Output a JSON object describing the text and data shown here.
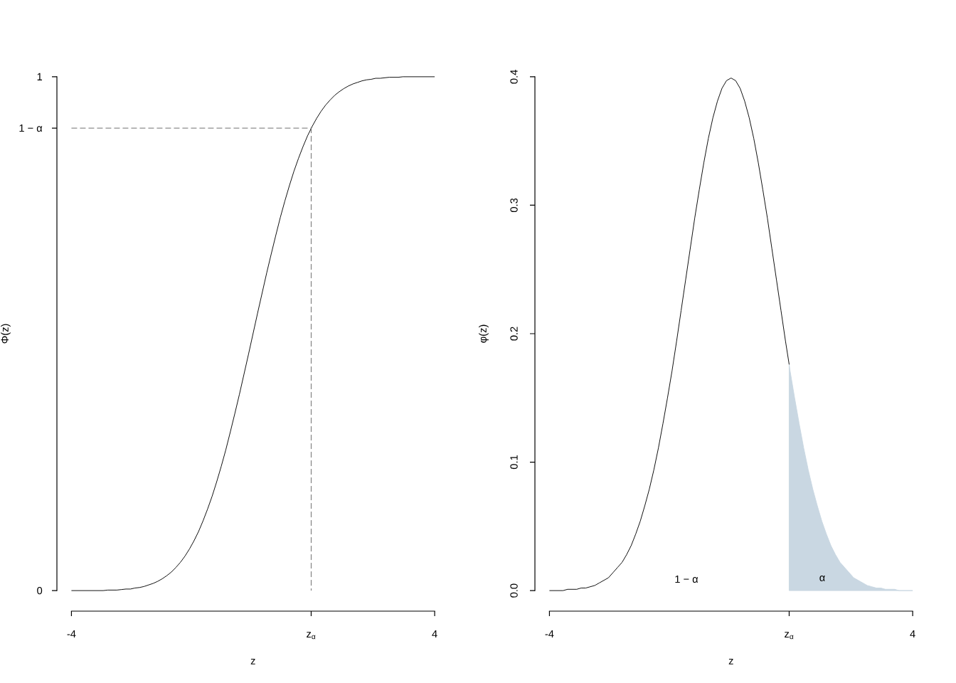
{
  "chart_data": [
    {
      "type": "line",
      "xlabel": "z",
      "ylabel": "Φ(z)",
      "xlim": [
        -4,
        4
      ],
      "ylim": [
        0,
        1
      ],
      "xticks": [
        -4,
        {
          "value": 1.28,
          "label": "z$_{α}$"
        },
        4
      ],
      "yticks": [
        0,
        {
          "value": 0.9,
          "label": "1 − α"
        },
        1
      ],
      "series": [
        {
          "color": "#000000",
          "x": [
            -4,
            -3.9,
            -3.8,
            -3.7,
            -3.6,
            -3.5,
            -3.4,
            -3.3,
            -3.2,
            -3.1,
            -3,
            -2.9,
            -2.8,
            -2.7,
            -2.6,
            -2.5,
            -2.4,
            -2.3,
            -2.2,
            -2.1,
            -2,
            -1.9,
            -1.8,
            -1.7,
            -1.6,
            -1.5,
            -1.4,
            -1.3,
            -1.2,
            -1.1,
            -1,
            -0.9,
            -0.8,
            -0.7,
            -0.6,
            -0.5,
            -0.4,
            -0.3,
            -0.2,
            -0.1,
            0,
            0.1,
            0.2,
            0.3,
            0.4,
            0.5,
            0.6,
            0.7,
            0.8,
            0.9,
            1,
            1.1,
            1.2,
            1.3,
            1.4,
            1.5,
            1.6,
            1.7,
            1.8,
            1.9,
            2,
            2.1,
            2.2,
            2.3,
            2.4,
            2.5,
            2.6,
            2.7,
            2.8,
            2.9,
            3,
            3.1,
            3.2,
            3.3,
            3.4,
            3.5,
            3.6,
            3.7,
            3.8,
            3.9,
            4
          ],
          "values": [
            0,
            0,
            0,
            0,
            0,
            0,
            0,
            0,
            0.001,
            0.001,
            0.001,
            0.002,
            0.003,
            0.003,
            0.005,
            0.006,
            0.008,
            0.011,
            0.014,
            0.018,
            0.023,
            0.029,
            0.036,
            0.045,
            0.055,
            0.067,
            0.081,
            0.097,
            0.115,
            0.136,
            0.159,
            0.184,
            0.212,
            0.242,
            0.274,
            0.309,
            0.345,
            0.382,
            0.421,
            0.46,
            0.5,
            0.54,
            0.579,
            0.618,
            0.655,
            0.691,
            0.726,
            0.758,
            0.788,
            0.816,
            0.841,
            0.864,
            0.885,
            0.903,
            0.919,
            0.933,
            0.945,
            0.955,
            0.964,
            0.971,
            0.977,
            0.982,
            0.986,
            0.989,
            0.992,
            0.994,
            0.995,
            0.997,
            0.997,
            0.998,
            0.999,
            0.999,
            0.999,
            1,
            1,
            1,
            1,
            1,
            1,
            1,
            1
          ]
        },
        {
          "color": "#666666",
          "line_style": "dashed",
          "x": [
            -4,
            1.28,
            1.28
          ],
          "values": [
            0.9,
            0.9,
            0
          ]
        }
      ]
    },
    {
      "type": "line",
      "xlabel": "z",
      "ylabel": "φ(z)",
      "xlim": [
        -4,
        4
      ],
      "ylim": [
        0,
        0.4
      ],
      "xticks": [
        -4,
        {
          "value": 1.28,
          "label": "z$_{α}$"
        },
        4
      ],
      "yticks": [
        {
          "value": 0,
          "label": "0.0"
        },
        0.1,
        0.2,
        0.3,
        0.4
      ],
      "series": [
        {
          "color": "#000000",
          "x": [
            -4,
            -3.9,
            -3.8,
            -3.7,
            -3.6,
            -3.5,
            -3.4,
            -3.3,
            -3.2,
            -3.1,
            -3,
            -2.9,
            -2.8,
            -2.7,
            -2.6,
            -2.5,
            -2.4,
            -2.3,
            -2.2,
            -2.1,
            -2,
            -1.9,
            -1.8,
            -1.7,
            -1.6,
            -1.5,
            -1.4,
            -1.3,
            -1.2,
            -1.1,
            -1,
            -0.9,
            -0.8,
            -0.7,
            -0.6,
            -0.5,
            -0.4,
            -0.3,
            -0.2,
            -0.1,
            0,
            0.1,
            0.2,
            0.3,
            0.4,
            0.5,
            0.6,
            0.7,
            0.8,
            0.9,
            1,
            1.1,
            1.2,
            1.28
          ],
          "values": [
            0,
            0,
            0,
            0,
            0.001,
            0.001,
            0.001,
            0.002,
            0.002,
            0.003,
            0.004,
            0.006,
            0.008,
            0.01,
            0.014,
            0.018,
            0.022,
            0.028,
            0.035,
            0.044,
            0.054,
            0.066,
            0.079,
            0.094,
            0.111,
            0.13,
            0.15,
            0.171,
            0.194,
            0.218,
            0.242,
            0.266,
            0.29,
            0.312,
            0.333,
            0.352,
            0.368,
            0.381,
            0.391,
            0.397,
            0.399,
            0.397,
            0.391,
            0.381,
            0.368,
            0.352,
            0.333,
            0.312,
            0.29,
            0.266,
            0.242,
            0.218,
            0.194,
            0.176
          ]
        },
        {
          "type": "area",
          "color": "#c9d7e2",
          "x": [
            1.28,
            1.3,
            1.4,
            1.5,
            1.6,
            1.7,
            1.8,
            1.9,
            2,
            2.1,
            2.2,
            2.3,
            2.4,
            2.5,
            2.6,
            2.7,
            2.8,
            2.9,
            3,
            3.1,
            3.2,
            3.3,
            3.4,
            3.5,
            3.6,
            3.7,
            3.8,
            3.9,
            4
          ],
          "values": [
            0.176,
            0.171,
            0.15,
            0.13,
            0.111,
            0.094,
            0.079,
            0.066,
            0.054,
            0.044,
            0.035,
            0.028,
            0.022,
            0.018,
            0.014,
            0.01,
            0.008,
            0.006,
            0.004,
            0.003,
            0.002,
            0.002,
            0.001,
            0.001,
            0.001,
            0,
            0,
            0,
            0
          ]
        }
      ],
      "annotations": [
        "1 − α",
        "α"
      ]
    }
  ]
}
